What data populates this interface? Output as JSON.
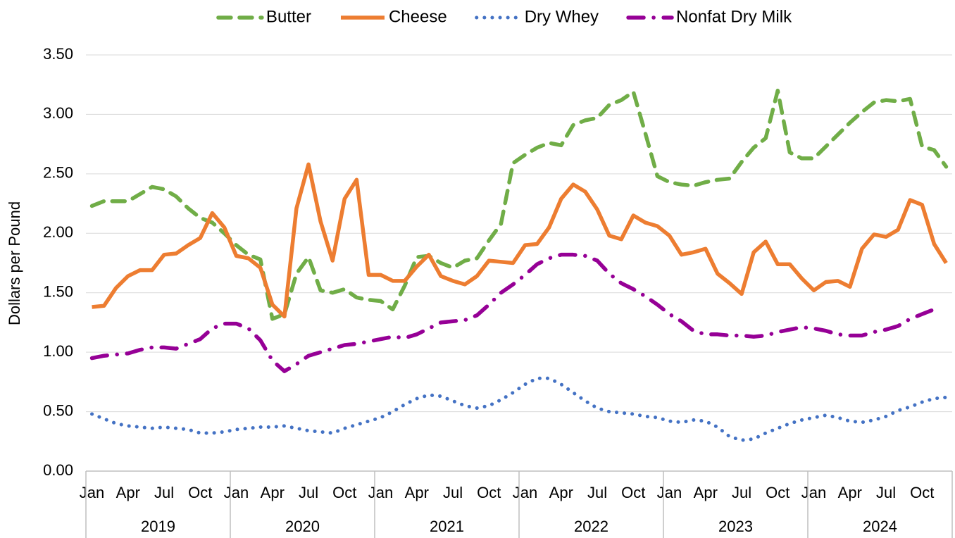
{
  "chart_data": {
    "type": "line",
    "ylabel": "Dollars per Pound",
    "categories": [
      "Jan",
      null,
      null,
      "Apr",
      null,
      null,
      "Jul",
      null,
      null,
      "Oct",
      null,
      null,
      "Jan",
      null,
      null,
      "Apr",
      null,
      null,
      "Jul",
      null,
      null,
      "Oct",
      null,
      null,
      "Jan",
      null,
      null,
      "Apr",
      null,
      null,
      "Jul",
      null,
      null,
      "Oct",
      null,
      null,
      "Jan",
      null,
      null,
      "Apr",
      null,
      null,
      "Jul",
      null,
      null,
      "Oct",
      null,
      null,
      "Jan",
      null,
      null,
      "Apr",
      null,
      null,
      "Jul",
      null,
      null,
      "Oct",
      null,
      null,
      "Jan",
      null,
      null,
      "Apr",
      null,
      null,
      "Jul",
      null,
      null,
      "Oct",
      null,
      null
    ],
    "years": [
      "2019",
      "2020",
      "2021",
      "2022",
      "2023",
      "2024"
    ],
    "ylim": [
      0,
      3.5
    ],
    "yticks": [
      {
        "value": 0,
        "label": "0.00"
      },
      {
        "value": 0.5,
        "label": "0.50"
      },
      {
        "value": 1,
        "label": "1.00"
      },
      {
        "value": 1.5,
        "label": "1.50"
      },
      {
        "value": 2,
        "label": "2.00"
      },
      {
        "value": 2.5,
        "label": "2.50"
      },
      {
        "value": 3,
        "label": "3.00"
      },
      {
        "value": 3.5,
        "label": "3.50"
      }
    ],
    "grid": true,
    "legend": "top",
    "series": [
      {
        "name": "Butter",
        "color": "#70ad47",
        "dash": "dash",
        "values": [
          2.23,
          2.27,
          2.27,
          2.27,
          2.33,
          2.39,
          2.37,
          2.31,
          2.21,
          2.13,
          2.09,
          2.0,
          1.9,
          1.82,
          1.78,
          1.28,
          1.32,
          1.66,
          1.8,
          1.52,
          1.5,
          1.53,
          1.46,
          1.44,
          1.43,
          1.36,
          1.56,
          1.8,
          1.81,
          1.75,
          1.71,
          1.77,
          1.79,
          1.94,
          2.08,
          2.59,
          2.66,
          2.72,
          2.76,
          2.74,
          2.91,
          2.95,
          2.97,
          3.08,
          3.12,
          3.19,
          2.84,
          2.48,
          2.43,
          2.41,
          2.4,
          2.43,
          2.45,
          2.46,
          2.6,
          2.72,
          2.8,
          3.2,
          2.68,
          2.63,
          2.63,
          2.73,
          2.83,
          2.93,
          3.02,
          3.1,
          3.12,
          3.11,
          3.13,
          2.73,
          2.7,
          2.56
        ]
      },
      {
        "name": "Cheese",
        "color": "#ed7d31",
        "dash": "solid",
        "values": [
          1.38,
          1.39,
          1.54,
          1.64,
          1.69,
          1.69,
          1.82,
          1.83,
          1.9,
          1.96,
          2.17,
          2.05,
          1.81,
          1.79,
          1.71,
          1.4,
          1.3,
          2.21,
          2.58,
          2.1,
          1.77,
          2.29,
          2.45,
          1.65,
          1.65,
          1.6,
          1.6,
          1.72,
          1.82,
          1.64,
          1.6,
          1.57,
          1.64,
          1.77,
          1.76,
          1.75,
          1.9,
          1.91,
          2.05,
          2.29,
          2.41,
          2.35,
          2.2,
          1.98,
          1.95,
          2.15,
          2.09,
          2.06,
          1.98,
          1.82,
          1.84,
          1.87,
          1.66,
          1.58,
          1.49,
          1.84,
          1.93,
          1.74,
          1.74,
          1.62,
          1.52,
          1.59,
          1.6,
          1.55,
          1.87,
          1.99,
          1.97,
          2.03,
          2.28,
          2.24,
          1.91,
          1.75
        ]
      },
      {
        "name": "Dry Whey",
        "color": "#4472c4",
        "dash": "dot",
        "values": [
          0.48,
          0.44,
          0.4,
          0.38,
          0.37,
          0.36,
          0.37,
          0.36,
          0.35,
          0.32,
          0.32,
          0.33,
          0.35,
          0.36,
          0.37,
          0.37,
          0.38,
          0.36,
          0.34,
          0.33,
          0.32,
          0.36,
          0.39,
          0.42,
          0.45,
          0.5,
          0.56,
          0.61,
          0.64,
          0.63,
          0.59,
          0.55,
          0.53,
          0.55,
          0.6,
          0.66,
          0.73,
          0.78,
          0.78,
          0.73,
          0.66,
          0.59,
          0.53,
          0.5,
          0.49,
          0.48,
          0.46,
          0.45,
          0.42,
          0.41,
          0.43,
          0.42,
          0.37,
          0.29,
          0.26,
          0.27,
          0.32,
          0.36,
          0.4,
          0.43,
          0.45,
          0.47,
          0.45,
          0.42,
          0.41,
          0.43,
          0.46,
          0.51,
          0.54,
          0.58,
          0.61,
          0.62
        ]
      },
      {
        "name": "Nonfat Dry Milk",
        "color": "#960096",
        "dash": "dashdot",
        "values": [
          0.95,
          0.97,
          0.98,
          0.99,
          1.02,
          1.04,
          1.04,
          1.03,
          1.07,
          1.11,
          1.2,
          1.24,
          1.24,
          1.2,
          1.1,
          0.93,
          0.84,
          0.9,
          0.97,
          1.0,
          1.03,
          1.06,
          1.07,
          1.09,
          1.11,
          1.13,
          1.12,
          1.15,
          1.2,
          1.25,
          1.26,
          1.27,
          1.31,
          1.4,
          1.5,
          1.57,
          1.65,
          1.74,
          1.79,
          1.82,
          1.82,
          1.81,
          1.77,
          1.66,
          1.58,
          1.53,
          1.47,
          1.4,
          1.32,
          1.26,
          1.18,
          1.15,
          1.15,
          1.14,
          1.14,
          1.13,
          1.14,
          1.17,
          1.19,
          1.21,
          1.2,
          1.18,
          1.15,
          1.14,
          1.14,
          1.17,
          1.19,
          1.22,
          1.28,
          1.32,
          1.36,
          null
        ]
      }
    ]
  }
}
